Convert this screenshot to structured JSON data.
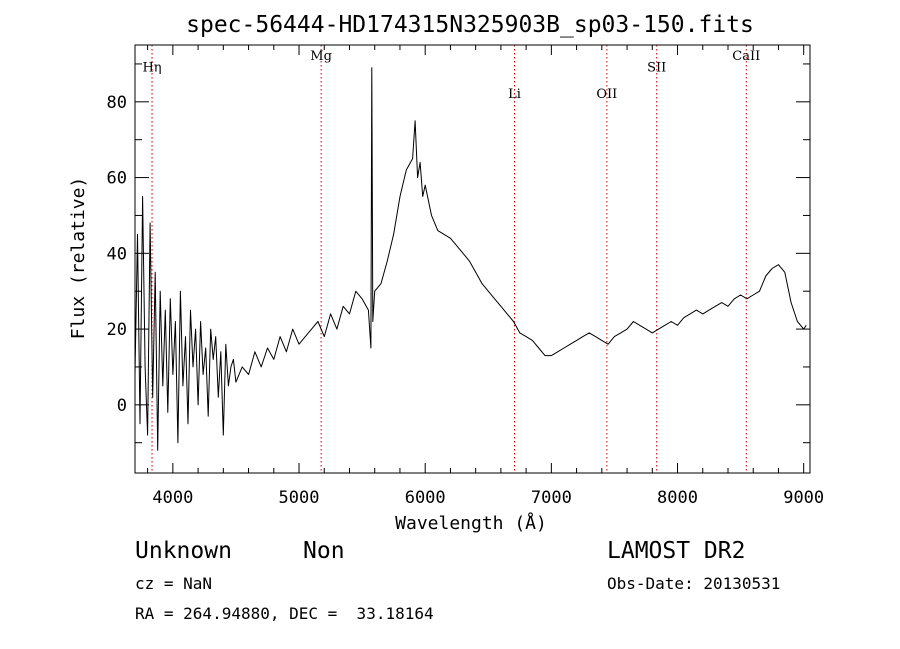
{
  "chart_data": {
    "type": "line",
    "title": "spec-56444-HD174315N325903B_sp03-150.fits",
    "xlabel": "Wavelength (Å)",
    "ylabel": "Flux (relative)",
    "xlim": [
      3700,
      9050
    ],
    "ylim": [
      -18,
      95
    ],
    "xticks": [
      4000,
      5000,
      6000,
      7000,
      8000,
      9000
    ],
    "yticks": [
      0,
      20,
      40,
      60,
      80
    ],
    "grid": false,
    "lines": [
      {
        "label": "Hη",
        "x": 3835,
        "label_level": 88
      },
      {
        "label": "Mg",
        "x": 5175,
        "label_level": 91
      },
      {
        "label": "Li",
        "x": 6708,
        "label_level": 81
      },
      {
        "label": "OII",
        "x": 7440,
        "label_level": 81
      },
      {
        "label": "SII",
        "x": 7835,
        "label_level": 88
      },
      {
        "label": "CaII",
        "x": 8545,
        "label_level": 91
      }
    ],
    "series": [
      {
        "x": [
          3700,
          3720,
          3740,
          3760,
          3780,
          3800,
          3820,
          3840,
          3860,
          3880,
          3900,
          3920,
          3940,
          3960,
          3980,
          4000,
          4020,
          4040,
          4060,
          4080,
          4100,
          4120,
          4140,
          4160,
          4180,
          4200,
          4220,
          4240,
          4260,
          4280,
          4300,
          4320,
          4340,
          4360,
          4380,
          4400,
          4420,
          4440,
          4460,
          4480,
          4500,
          4550,
          4600,
          4650,
          4700,
          4750,
          4800,
          4850,
          4900,
          4950,
          5000,
          5050,
          5100,
          5150,
          5200,
          5250,
          5300,
          5350,
          5400,
          5450,
          5500,
          5550,
          5570,
          5577,
          5585,
          5600,
          5650,
          5700,
          5750,
          5800,
          5850,
          5900,
          5920,
          5940,
          5960,
          5980,
          6000,
          6050,
          6100,
          6150,
          6200,
          6250,
          6300,
          6350,
          6400,
          6450,
          6500,
          6550,
          6600,
          6650,
          6700,
          6750,
          6800,
          6850,
          6900,
          6950,
          7000,
          7050,
          7100,
          7150,
          7200,
          7250,
          7300,
          7350,
          7400,
          7450,
          7500,
          7550,
          7600,
          7650,
          7700,
          7750,
          7800,
          7850,
          7900,
          7950,
          8000,
          8050,
          8100,
          8150,
          8200,
          8250,
          8300,
          8350,
          8400,
          8450,
          8500,
          8550,
          8600,
          8650,
          8700,
          8750,
          8800,
          8850,
          8900,
          8950,
          9000,
          9020
        ],
        "y": [
          8,
          45,
          -5,
          55,
          10,
          -8,
          48,
          2,
          35,
          -12,
          30,
          5,
          25,
          -2,
          28,
          8,
          22,
          -10,
          30,
          5,
          18,
          -5,
          25,
          10,
          20,
          0,
          22,
          8,
          15,
          -3,
          20,
          12,
          18,
          2,
          14,
          -8,
          16,
          5,
          10,
          12,
          6,
          10,
          8,
          14,
          10,
          15,
          12,
          18,
          14,
          20,
          16,
          18,
          20,
          22,
          18,
          24,
          20,
          26,
          24,
          30,
          28,
          25,
          15,
          89,
          22,
          30,
          32,
          38,
          45,
          55,
          62,
          65,
          75,
          60,
          64,
          55,
          58,
          50,
          46,
          45,
          44,
          42,
          40,
          38,
          35,
          32,
          30,
          28,
          26,
          24,
          22,
          19,
          18,
          17,
          15,
          13,
          13,
          14,
          15,
          16,
          17,
          18,
          19,
          18,
          17,
          16,
          18,
          19,
          20,
          22,
          21,
          20,
          19,
          20,
          21,
          22,
          21,
          23,
          24,
          25,
          24,
          25,
          26,
          27,
          26,
          28,
          29,
          28,
          29,
          30,
          34,
          36,
          37,
          35,
          27,
          22,
          20,
          21
        ]
      }
    ],
    "annotations": {
      "object_class": "Unknown",
      "object_subclass": "Non",
      "survey": "LAMOST DR2",
      "redshift": "cz = NaN",
      "obs_date": "Obs-Date: 20130531",
      "coords": "RA = 264.94880, DEC =  33.18164"
    }
  }
}
